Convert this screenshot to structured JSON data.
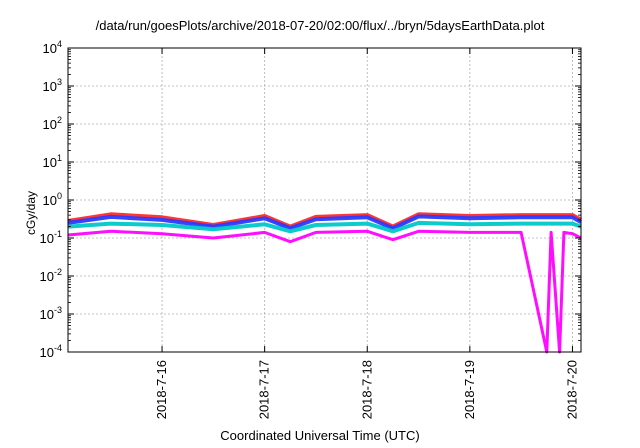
{
  "chart_data": {
    "type": "line",
    "title": "/data/run/goesPlots/archive/2018-07-20/02:00/flux/../bryn/5daysEarthData.plot",
    "xlabel": "Coordinated Universal Time (UTC)",
    "ylabel": "cGy/day",
    "y_scale": "log",
    "ylim": [
      0.0001,
      10000
    ],
    "xlim": [
      "2018-07-15T02:00",
      "2018-07-20T02:00"
    ],
    "grid": true,
    "y_ticks": [
      {
        "base": "10",
        "exp": "-4"
      },
      {
        "base": "10",
        "exp": "-3"
      },
      {
        "base": "10",
        "exp": "-2"
      },
      {
        "base": "10",
        "exp": "-1"
      },
      {
        "base": "10",
        "exp": "0"
      },
      {
        "base": "10",
        "exp": "1"
      },
      {
        "base": "10",
        "exp": "2"
      },
      {
        "base": "10",
        "exp": "3"
      },
      {
        "base": "10",
        "exp": "4"
      }
    ],
    "x_ticks": [
      "2018-7-16",
      "2018-7-17",
      "2018-7-18",
      "2018-7-19",
      "2018-7-20"
    ],
    "series": [
      {
        "color": "#ff2a2a",
        "x": [
          "2018-07-15T02:00",
          "2018-07-15T12:00",
          "2018-07-16T00:00",
          "2018-07-16T12:00",
          "2018-07-17T00:00",
          "2018-07-17T06:00",
          "2018-07-17T12:00",
          "2018-07-18T00:00",
          "2018-07-18T06:00",
          "2018-07-18T12:00",
          "2018-07-19T00:00",
          "2018-07-19T12:00",
          "2018-07-20T00:00",
          "2018-07-20T02:00"
        ],
        "y": [
          0.28,
          0.42,
          0.35,
          0.22,
          0.38,
          0.2,
          0.36,
          0.4,
          0.2,
          0.42,
          0.38,
          0.4,
          0.4,
          0.3
        ]
      },
      {
        "color": "#2a3cff",
        "x": [
          "2018-07-15T02:00",
          "2018-07-15T12:00",
          "2018-07-16T00:00",
          "2018-07-16T12:00",
          "2018-07-17T00:00",
          "2018-07-17T06:00",
          "2018-07-17T12:00",
          "2018-07-18T00:00",
          "2018-07-18T06:00",
          "2018-07-18T12:00",
          "2018-07-19T00:00",
          "2018-07-19T12:00",
          "2018-07-20T00:00",
          "2018-07-20T02:00"
        ],
        "y": [
          0.25,
          0.36,
          0.3,
          0.2,
          0.33,
          0.18,
          0.31,
          0.35,
          0.18,
          0.37,
          0.33,
          0.35,
          0.35,
          0.26
        ]
      },
      {
        "color": "#00c8c8",
        "x": [
          "2018-07-15T02:00",
          "2018-07-15T12:00",
          "2018-07-16T00:00",
          "2018-07-16T12:00",
          "2018-07-17T00:00",
          "2018-07-17T06:00",
          "2018-07-17T12:00",
          "2018-07-18T00:00",
          "2018-07-18T06:00",
          "2018-07-18T12:00",
          "2018-07-19T00:00",
          "2018-07-19T12:00",
          "2018-07-20T00:00",
          "2018-07-20T02:00"
        ],
        "y": [
          0.2,
          0.24,
          0.22,
          0.17,
          0.23,
          0.15,
          0.22,
          0.24,
          0.15,
          0.25,
          0.23,
          0.24,
          0.24,
          0.2
        ]
      },
      {
        "color": "#ff00ff",
        "x": [
          "2018-07-15T02:00",
          "2018-07-15T12:00",
          "2018-07-16T00:00",
          "2018-07-16T12:00",
          "2018-07-17T00:00",
          "2018-07-17T06:00",
          "2018-07-17T12:00",
          "2018-07-18T00:00",
          "2018-07-18T06:00",
          "2018-07-18T12:00",
          "2018-07-19T00:00",
          "2018-07-19T12:00",
          "2018-07-19T18:00",
          "2018-07-19T19:00",
          "2018-07-19T21:00",
          "2018-07-19T22:00",
          "2018-07-20T00:00",
          "2018-07-20T02:00"
        ],
        "y": [
          0.12,
          0.15,
          0.13,
          0.1,
          0.14,
          0.08,
          0.14,
          0.15,
          0.09,
          0.15,
          0.14,
          0.14,
          0.0001,
          0.14,
          0.0001,
          0.14,
          0.13,
          0.1
        ]
      }
    ]
  }
}
